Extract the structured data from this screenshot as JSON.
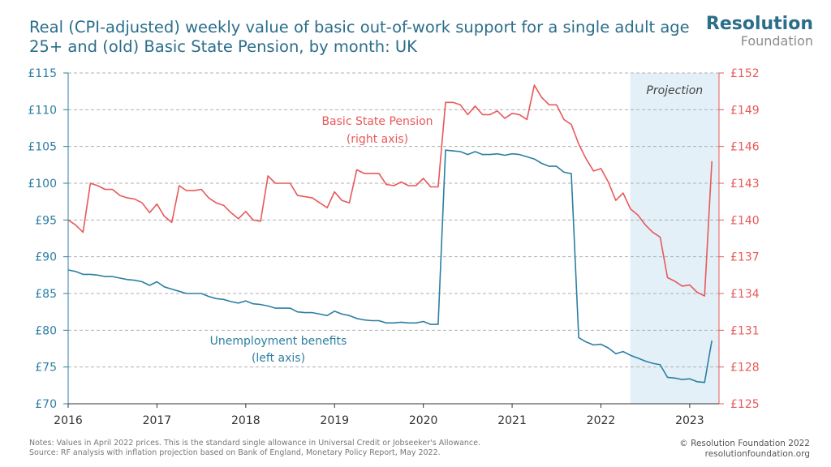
{
  "title": "Real (CPI-adjusted) weekly value of basic out-of-work support for a single adult age 25+ and (old) Basic State Pension, by month: UK",
  "logo": {
    "line1": "Resolution",
    "line2": "Foundation"
  },
  "notes": {
    "line1": "Notes:  Values in April 2022 prices. This is the standard single allowance in Universal Credit or Jobseeker's Allowance.",
    "line2": "Source: RF analysis with inflation projection based on Bank of England, Monetary Policy Report, May 2022."
  },
  "credit": {
    "line1": "© Resolution Foundation 2022",
    "line2": "resolutionfoundation.org"
  },
  "colors": {
    "unemployment": "#2b7fa3",
    "pension": "#e8585a",
    "projection_shade": "#e3f0f7",
    "grid": "#b0b0b0",
    "axis_left": "#2b7fa3",
    "axis_right": "#e8585a"
  },
  "chart_data": {
    "type": "line",
    "x_unit": "year (monthly data)",
    "xlim": [
      2016,
      2023.33
    ],
    "x_ticks": [
      "2016",
      "2017",
      "2018",
      "2019",
      "2020",
      "2021",
      "2022",
      "2023"
    ],
    "y_left": {
      "range": [
        70,
        115
      ],
      "ticks": [
        "£70",
        "£75",
        "£80",
        "£85",
        "£90",
        "£95",
        "£100",
        "£105",
        "£110",
        "£115"
      ]
    },
    "y_right": {
      "range": [
        125,
        152
      ],
      "ticks": [
        "£125",
        "£128",
        "£131",
        "£134",
        "£137",
        "£140",
        "£143",
        "£146",
        "£149",
        "£152"
      ]
    },
    "grid": "horizontal dashed",
    "projection": {
      "label": "Projection",
      "from": 2022.33,
      "to": 2023.33
    },
    "series": [
      {
        "name": "Unemployment benefits",
        "label": "Unemployment benefits\n(left axis)",
        "axis": "left",
        "x": [
          2016.0,
          2016.083,
          2016.167,
          2016.25,
          2016.333,
          2016.417,
          2016.5,
          2016.583,
          2016.667,
          2016.75,
          2016.833,
          2016.917,
          2017.0,
          2017.083,
          2017.167,
          2017.25,
          2017.333,
          2017.417,
          2017.5,
          2017.583,
          2017.667,
          2017.75,
          2017.833,
          2017.917,
          2018.0,
          2018.083,
          2018.167,
          2018.25,
          2018.333,
          2018.417,
          2018.5,
          2018.583,
          2018.667,
          2018.75,
          2018.833,
          2018.917,
          2019.0,
          2019.083,
          2019.167,
          2019.25,
          2019.333,
          2019.417,
          2019.5,
          2019.583,
          2019.667,
          2019.75,
          2019.833,
          2019.917,
          2020.0,
          2020.083,
          2020.167,
          2020.25,
          2020.333,
          2020.417,
          2020.5,
          2020.583,
          2020.667,
          2020.75,
          2020.833,
          2020.917,
          2021.0,
          2021.083,
          2021.167,
          2021.25,
          2021.333,
          2021.417,
          2021.5,
          2021.583,
          2021.667,
          2021.75,
          2021.833,
          2021.917,
          2022.0,
          2022.083,
          2022.167,
          2022.25,
          2022.333,
          2022.417,
          2022.5,
          2022.583,
          2022.667,
          2022.75,
          2022.833,
          2022.917,
          2023.0,
          2023.083,
          2023.167,
          2023.25
        ],
        "values": [
          88.2,
          88.0,
          87.6,
          87.6,
          87.5,
          87.3,
          87.3,
          87.1,
          86.9,
          86.8,
          86.6,
          86.1,
          86.6,
          85.9,
          85.6,
          85.3,
          85.0,
          85.0,
          85.0,
          84.6,
          84.3,
          84.2,
          83.9,
          83.7,
          84.0,
          83.6,
          83.5,
          83.3,
          83.0,
          83.0,
          83.0,
          82.5,
          82.4,
          82.4,
          82.2,
          82.0,
          82.6,
          82.2,
          82.0,
          81.6,
          81.4,
          81.3,
          81.3,
          81.0,
          81.0,
          81.1,
          81.0,
          81.0,
          81.2,
          80.8,
          80.8,
          104.5,
          104.4,
          104.3,
          103.9,
          104.3,
          103.9,
          103.9,
          104.0,
          103.8,
          104.0,
          103.9,
          103.6,
          103.3,
          102.7,
          102.3,
          102.3,
          101.5,
          101.3,
          79.0,
          78.4,
          78.0,
          78.1,
          77.6,
          76.8,
          77.1,
          76.6,
          76.2,
          75.8,
          75.5,
          75.3,
          73.6,
          73.5,
          73.3,
          73.4,
          73.0,
          72.9,
          78.6
        ]
      },
      {
        "name": "Basic State Pension",
        "label": "Basic State Pension\n(right axis)",
        "axis": "right",
        "x": [
          2016.0,
          2016.083,
          2016.167,
          2016.25,
          2016.333,
          2016.417,
          2016.5,
          2016.583,
          2016.667,
          2016.75,
          2016.833,
          2016.917,
          2017.0,
          2017.083,
          2017.167,
          2017.25,
          2017.333,
          2017.417,
          2017.5,
          2017.583,
          2017.667,
          2017.75,
          2017.833,
          2017.917,
          2018.0,
          2018.083,
          2018.167,
          2018.25,
          2018.333,
          2018.417,
          2018.5,
          2018.583,
          2018.667,
          2018.75,
          2018.833,
          2018.917,
          2019.0,
          2019.083,
          2019.167,
          2019.25,
          2019.333,
          2019.417,
          2019.5,
          2019.583,
          2019.667,
          2019.75,
          2019.833,
          2019.917,
          2020.0,
          2020.083,
          2020.167,
          2020.25,
          2020.333,
          2020.417,
          2020.5,
          2020.583,
          2020.667,
          2020.75,
          2020.833,
          2020.917,
          2021.0,
          2021.083,
          2021.167,
          2021.25,
          2021.333,
          2021.417,
          2021.5,
          2021.583,
          2021.667,
          2021.75,
          2021.833,
          2021.917,
          2022.0,
          2022.083,
          2022.167,
          2022.25,
          2022.333,
          2022.417,
          2022.5,
          2022.583,
          2022.667,
          2022.75,
          2022.833,
          2022.917,
          2023.0,
          2023.083,
          2023.167,
          2023.25
        ],
        "values": [
          140.0,
          139.6,
          139.0,
          143.0,
          142.8,
          142.5,
          142.5,
          142.0,
          141.8,
          141.7,
          141.4,
          140.6,
          141.3,
          140.3,
          139.8,
          142.8,
          142.4,
          142.4,
          142.5,
          141.8,
          141.4,
          141.2,
          140.6,
          140.1,
          140.7,
          140.0,
          139.9,
          143.6,
          143.0,
          143.0,
          143.0,
          142.0,
          141.9,
          141.8,
          141.4,
          141.0,
          142.3,
          141.6,
          141.4,
          144.1,
          143.8,
          143.8,
          143.8,
          142.9,
          142.8,
          143.1,
          142.8,
          142.8,
          143.4,
          142.7,
          142.7,
          149.6,
          149.6,
          149.4,
          148.6,
          149.3,
          148.6,
          148.6,
          148.9,
          148.3,
          148.7,
          148.6,
          148.2,
          151.0,
          150.0,
          149.4,
          149.4,
          148.2,
          147.8,
          146.2,
          145.0,
          144.0,
          144.2,
          143.1,
          141.6,
          142.2,
          140.9,
          140.4,
          139.6,
          139.0,
          138.6,
          135.3,
          135.0,
          134.6,
          134.7,
          134.1,
          133.8,
          144.8
        ]
      }
    ]
  }
}
